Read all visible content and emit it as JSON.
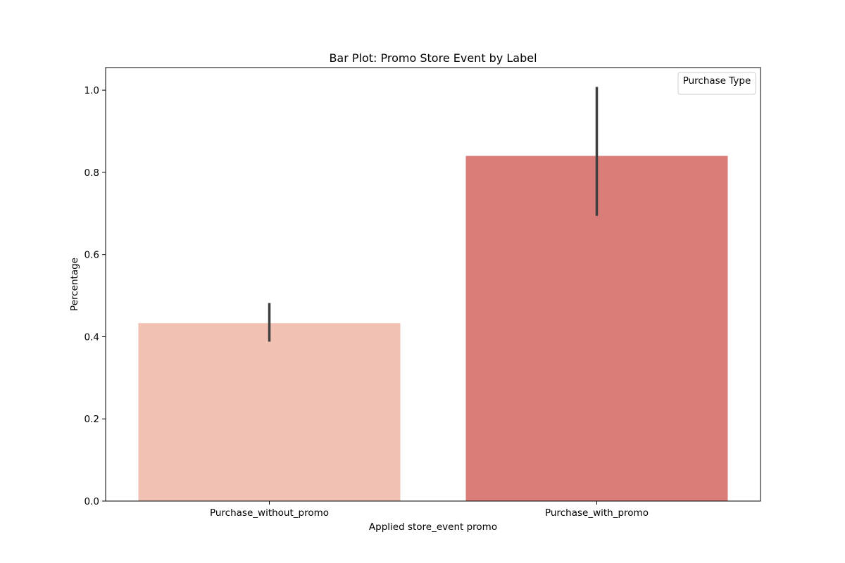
{
  "chart_data": {
    "type": "bar",
    "title": "Bar Plot: Promo Store Event by Label",
    "xlabel": "Applied store_event promo",
    "ylabel": "Percentage",
    "categories": [
      "Purchase_without_promo",
      "Purchase_with_promo"
    ],
    "values": [
      0.433,
      0.84
    ],
    "error_low": [
      0.388,
      0.694
    ],
    "error_high": [
      0.482,
      1.008
    ],
    "ylim": [
      0,
      1.055
    ],
    "yticks": [
      0.0,
      0.2,
      0.4,
      0.6,
      0.8,
      1.0
    ],
    "ytick_labels": [
      "0.0",
      "0.2",
      "0.4",
      "0.6",
      "0.8",
      "1.0"
    ],
    "bar_colors": [
      "#f1c2b4",
      "#da7c77"
    ],
    "error_bar_color": "#3f3f3f",
    "grid": false,
    "legend": {
      "title": "Purchase Type",
      "placement": "top-right",
      "entries": []
    }
  }
}
